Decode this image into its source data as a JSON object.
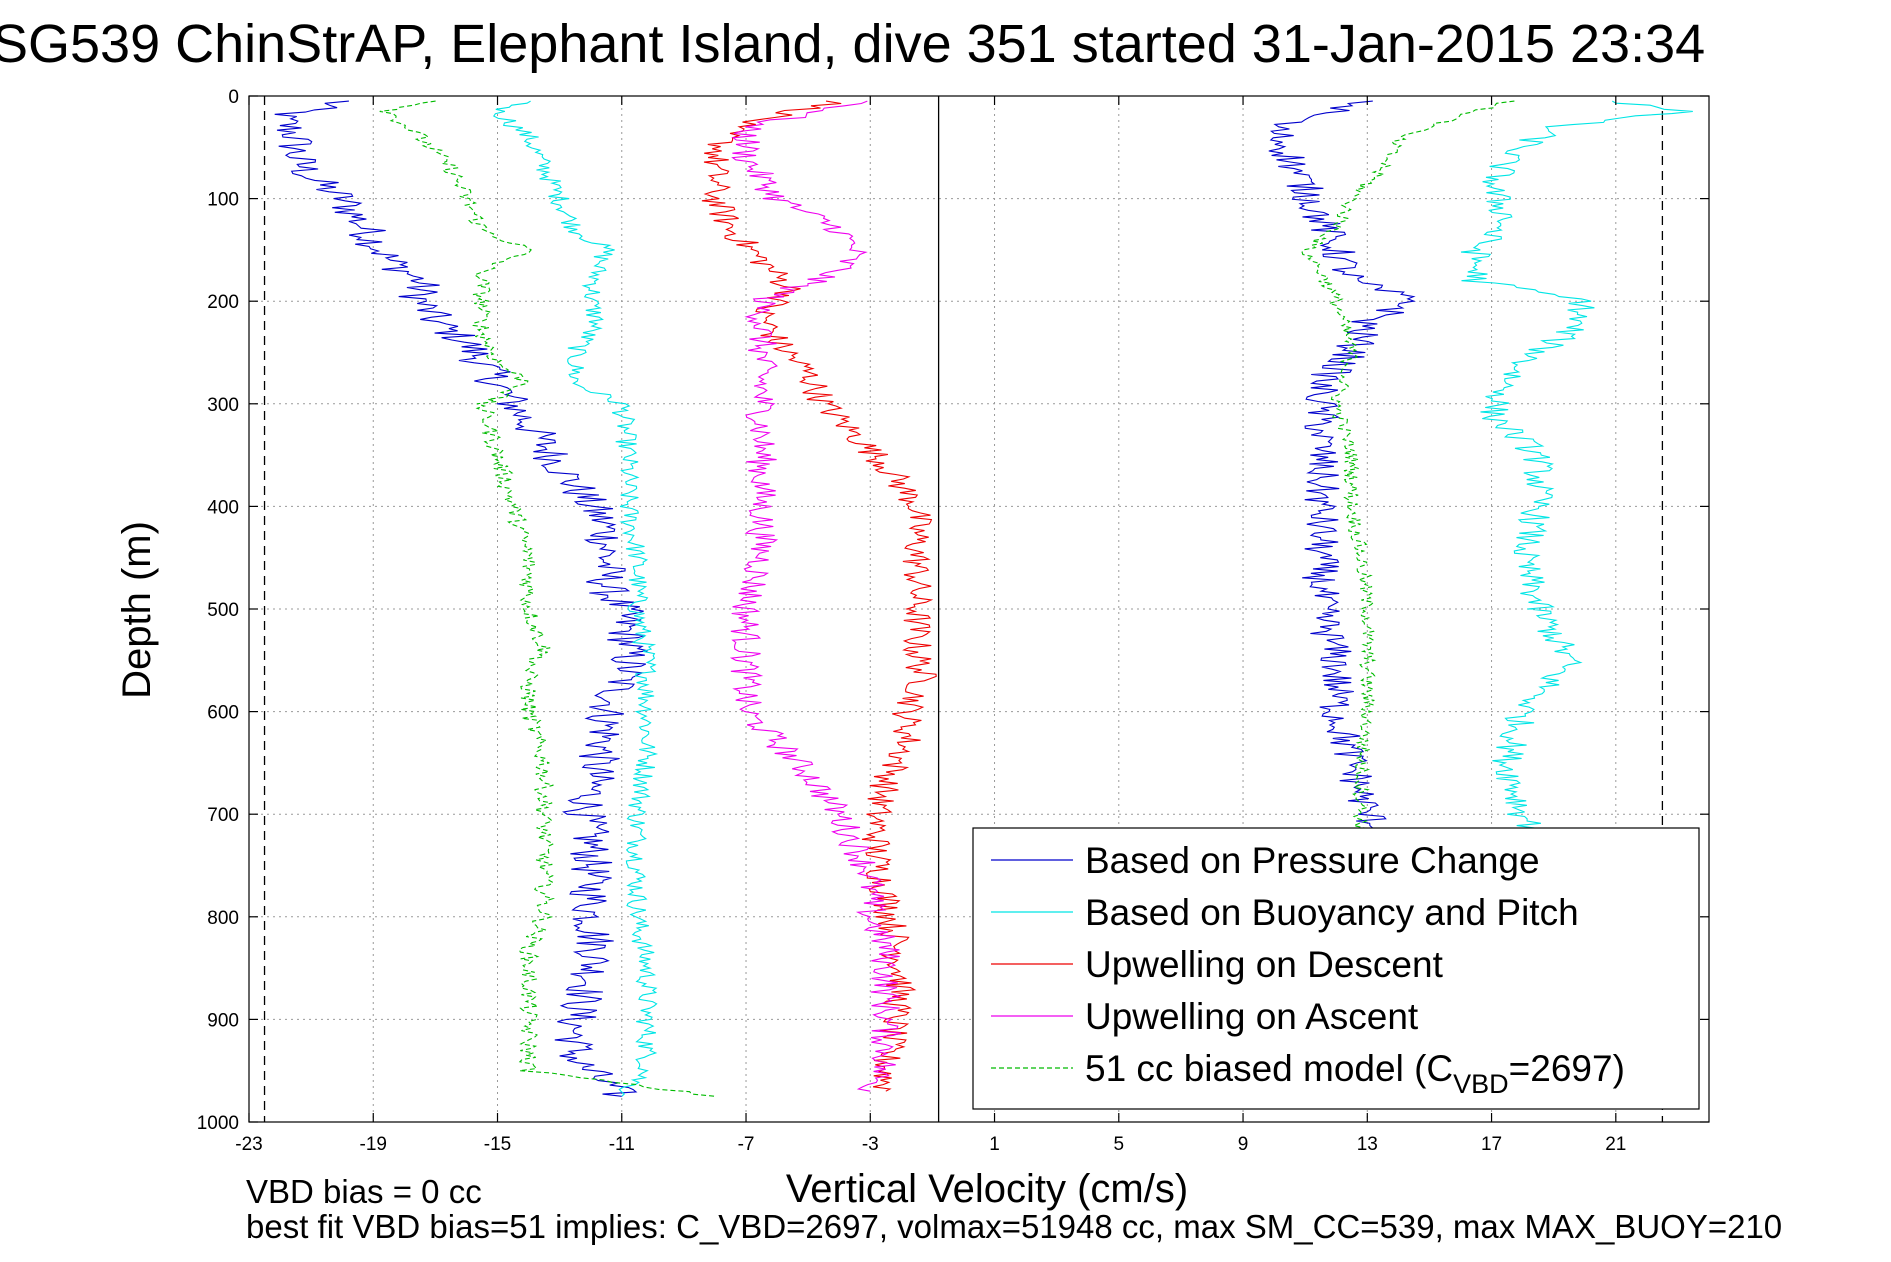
{
  "chart_data": {
    "type": "line",
    "title": "SG539 ChinStrAP, Elephant Island, dive 351 started 31-Jan-2015 23:34",
    "xlabel": "Vertical Velocity (cm/s)",
    "ylabel": "Depth (m)",
    "xlim": [
      -23,
      24
    ],
    "ylim": [
      1000,
      0
    ],
    "y_inverted": true,
    "grid": true,
    "x_ticks": [
      -23,
      -19,
      -15,
      -11,
      -7,
      -3,
      1,
      5,
      9,
      13,
      17,
      21
    ],
    "x_tick_labels": [
      "-23",
      "-19",
      "-15",
      "-11",
      "-7",
      "-3",
      "1",
      "5",
      "9",
      "13",
      "17",
      "21"
    ],
    "y_ticks": [
      0,
      100,
      200,
      300,
      400,
      500,
      600,
      700,
      800,
      900,
      1000
    ],
    "y_tick_labels": [
      "0",
      "100",
      "200",
      "300",
      "400",
      "500",
      "600",
      "700",
      "800",
      "900",
      "1000"
    ],
    "legend_position": "bottom-right",
    "reference_lines": [
      {
        "x": -22.5,
        "style": "dashed",
        "color": "#000000"
      },
      {
        "x": -0.8,
        "style": "solid",
        "color": "#000000"
      },
      {
        "x": 22.5,
        "style": "dashed",
        "color": "#000000"
      }
    ],
    "series": [
      {
        "name": "Based on Pressure Change",
        "color": "#0000cc",
        "dash": "solid",
        "panel": "descent",
        "noise": 0.7,
        "depth": [
          5,
          20,
          40,
          60,
          80,
          100,
          120,
          140,
          160,
          180,
          200,
          220,
          240,
          260,
          280,
          300,
          320,
          340,
          360,
          380,
          400,
          420,
          450,
          480,
          500,
          530,
          560,
          580,
          600,
          620,
          650,
          680,
          700,
          730,
          760,
          800,
          830,
          860,
          900,
          940,
          975
        ],
        "values": [
          -20,
          -22,
          -21.5,
          -21.5,
          -21,
          -20,
          -19.5,
          -19,
          -18.5,
          -17.5,
          -17.5,
          -17,
          -16,
          -15.5,
          -15,
          -14.5,
          -14,
          -13.5,
          -13,
          -12.5,
          -12,
          -11.5,
          -11.5,
          -11.5,
          -11,
          -10.8,
          -10.8,
          -11.2,
          -11.5,
          -11.5,
          -11.8,
          -12,
          -12.2,
          -12,
          -12,
          -12,
          -11.8,
          -12,
          -12.5,
          -12.5,
          -11
        ]
      },
      {
        "name": "Based on Buoyancy and Pitch",
        "color": "#00e5e5",
        "dash": "solid",
        "panel": "descent",
        "noise": 0.35,
        "depth": [
          5,
          15,
          40,
          70,
          100,
          130,
          150,
          170,
          200,
          220,
          250,
          280,
          300,
          350,
          400,
          450,
          500,
          550,
          600,
          650,
          700,
          750,
          800,
          850,
          900,
          950,
          975
        ],
        "values": [
          -14,
          -15,
          -14,
          -13.5,
          -13,
          -12.5,
          -11.5,
          -11.8,
          -12,
          -11.8,
          -12.5,
          -12.5,
          -11,
          -10.8,
          -10.8,
          -10.5,
          -10.5,
          -10.2,
          -10.2,
          -10.2,
          -10.5,
          -10.5,
          -10.5,
          -10.2,
          -10.2,
          -10.2,
          -11
        ]
      },
      {
        "name": "Upwelling on Descent",
        "color": "#ee0000",
        "dash": "solid",
        "panel": "descent",
        "noise": 0.5,
        "depth": [
          5,
          30,
          60,
          100,
          130,
          160,
          190,
          210,
          240,
          270,
          300,
          330,
          360,
          380,
          400,
          430,
          460,
          500,
          540,
          570,
          600,
          630,
          670,
          700,
          740,
          780,
          820,
          860,
          900,
          940,
          970
        ],
        "values": [
          -4,
          -7.5,
          -8,
          -8,
          -7.5,
          -6.5,
          -5.5,
          -6.5,
          -6,
          -5,
          -4.5,
          -3.5,
          -2.5,
          -2,
          -1.5,
          -1.5,
          -1.5,
          -1.5,
          -1.5,
          -1.3,
          -1.8,
          -1.8,
          -2.5,
          -2.8,
          -2.8,
          -2.5,
          -2.2,
          -2.0,
          -2.2,
          -2.5,
          -2.5
        ]
      },
      {
        "name": "Upwelling on Ascent",
        "color": "#ee00ee",
        "dash": "solid",
        "panel": "descent",
        "noise": 0.5,
        "depth": [
          5,
          30,
          60,
          100,
          130,
          150,
          170,
          200,
          250,
          300,
          350,
          400,
          450,
          500,
          550,
          580,
          600,
          630,
          660,
          700,
          730,
          760,
          800,
          830,
          860,
          900,
          940,
          970
        ],
        "values": [
          -3,
          -7,
          -7,
          -6,
          -4,
          -3.5,
          -4,
          -6.5,
          -6.5,
          -6.5,
          -6.5,
          -6.5,
          -6.5,
          -7,
          -7,
          -7,
          -7,
          -6,
          -5,
          -4,
          -3.5,
          -3,
          -3,
          -2.5,
          -2.5,
          -2.5,
          -2.5,
          -3
        ]
      },
      {
        "name": "51 cc biased model (C",
        "subscript": "VBD",
        "suffix": "=2697)",
        "color": "#00bb00",
        "dash": "dashed",
        "panel": "descent",
        "noise": 0.3,
        "depth": [
          5,
          15,
          40,
          70,
          100,
          130,
          150,
          170,
          200,
          230,
          260,
          280,
          300,
          350,
          400,
          450,
          500,
          540,
          560,
          600,
          650,
          700,
          800,
          830,
          900,
          950,
          975
        ],
        "values": [
          -17,
          -18.5,
          -17.5,
          -16.5,
          -16,
          -15.5,
          -14,
          -15.5,
          -15.5,
          -15.5,
          -15,
          -14,
          -15.5,
          -15,
          -14.5,
          -14,
          -14,
          -13.5,
          -14,
          -14,
          -13.5,
          -13.5,
          -13.5,
          -14,
          -14,
          -14,
          -8
        ]
      },
      {
        "name": "Based on Pressure Change",
        "color": "#0000cc",
        "dash": "solid",
        "panel": "ascent",
        "noise": 0.6,
        "depth": [
          5,
          30,
          60,
          90,
          120,
          150,
          180,
          200,
          220,
          250,
          280,
          300,
          350,
          400,
          450,
          500,
          550,
          600,
          650,
          700,
          720
        ],
        "values": [
          13,
          10,
          10.5,
          11,
          11.5,
          12,
          12.5,
          14.5,
          13,
          12.5,
          11.5,
          11.5,
          11.5,
          11.5,
          11.5,
          11.5,
          12,
          12,
          12.5,
          13,
          13.5
        ]
      },
      {
        "name": "Based on Buoyancy and Pitch",
        "color": "#00e5e5",
        "dash": "solid",
        "panel": "ascent",
        "noise": 0.5,
        "depth": [
          5,
          15,
          30,
          60,
          90,
          120,
          150,
          180,
          200,
          230,
          260,
          280,
          310,
          350,
          400,
          450,
          500,
          550,
          600,
          650,
          700,
          720
        ],
        "values": [
          21,
          23,
          19,
          17.5,
          17,
          17.5,
          16.5,
          16.5,
          20,
          19.5,
          18,
          17.5,
          17,
          18.5,
          18.5,
          18,
          18.5,
          19.5,
          18,
          17.5,
          18,
          18.5
        ]
      },
      {
        "name": "51 cc biased model (C",
        "color": "#00bb00",
        "dash": "dashed",
        "panel": "ascent",
        "noise": 0.25,
        "depth": [
          5,
          20,
          40,
          70,
          100,
          130,
          150,
          170,
          200,
          250,
          300,
          350,
          400,
          450,
          500,
          550,
          600,
          650,
          700,
          720
        ],
        "values": [
          17.5,
          16,
          14,
          13.5,
          12.5,
          12,
          11,
          11.5,
          12,
          12.5,
          12,
          12.5,
          12.5,
          12.8,
          13,
          13,
          13,
          12.8,
          12.8,
          12.8
        ]
      }
    ]
  },
  "footer": {
    "line1": "VBD bias = 0 cc",
    "line2": "best fit VBD bias=51 implies: C_VBD=2697, volmax=51948 cc, max SM_CC=539, max MAX_BUOY=210"
  }
}
